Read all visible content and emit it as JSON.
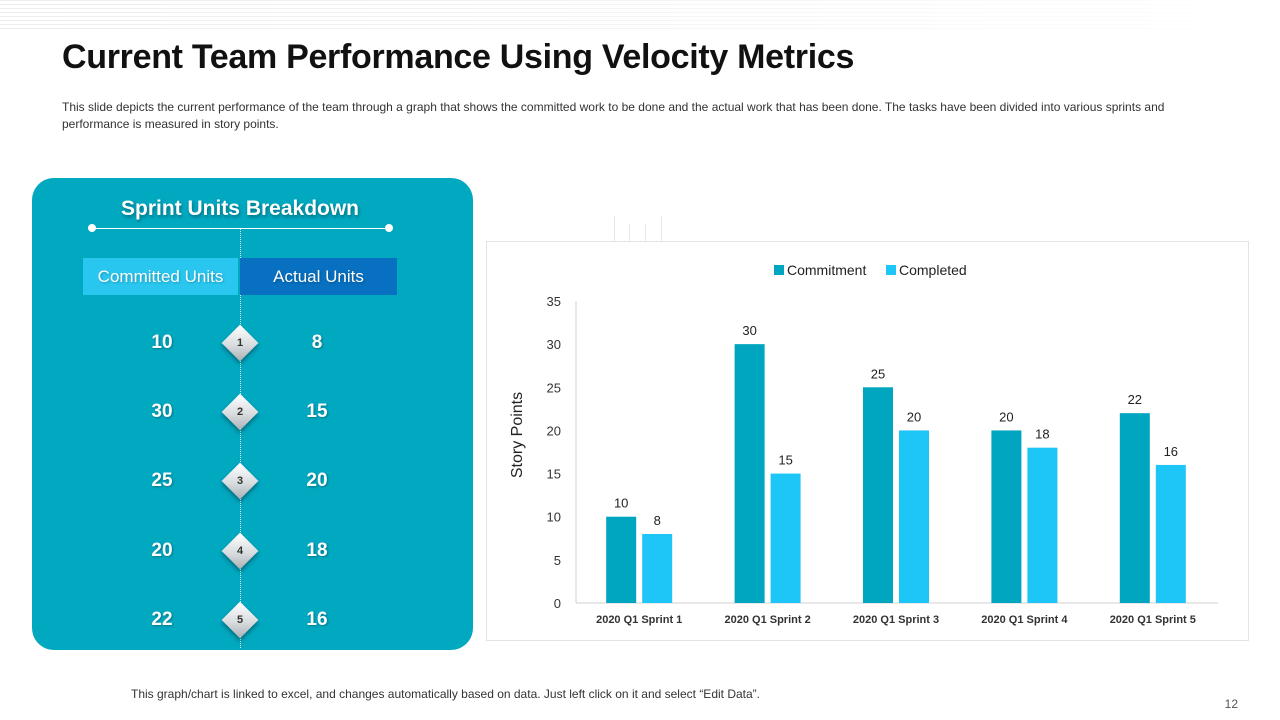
{
  "slide": {
    "title": "Current Team Performance Using Velocity Metrics",
    "description": "This slide depicts the current performance of the team through a graph that shows the committed work to be done and the actual work that has been done. The tasks have been divided into various sprints and performance is measured in story points.",
    "footer_note": "This graph/chart is linked to excel, and changes automatically based on data. Just left click on it and select “Edit Data”.",
    "page_number": "12"
  },
  "breakdown": {
    "title": "Sprint Units Breakdown",
    "committed_header": "Committed Units",
    "actual_header": "Actual Units",
    "rows": [
      {
        "index": "1",
        "committed": "10",
        "actual": "8"
      },
      {
        "index": "2",
        "committed": "30",
        "actual": "15"
      },
      {
        "index": "3",
        "committed": "25",
        "actual": "20"
      },
      {
        "index": "4",
        "committed": "20",
        "actual": "18"
      },
      {
        "index": "5",
        "committed": "22",
        "actual": "16"
      }
    ]
  },
  "colors": {
    "panel": "#00a8c0",
    "commitment": "#00a5bf",
    "completed": "#1ec5f7",
    "committed_header": "#29c7f0",
    "actual_header": "#0770c0"
  },
  "chart_data": {
    "type": "bar",
    "title": "",
    "xlabel": "",
    "ylabel": "Story Points",
    "ylim": [
      0,
      35
    ],
    "yticks": [
      0,
      5,
      10,
      15,
      20,
      25,
      30,
      35
    ],
    "grid": false,
    "legend_position": "top-center",
    "categories": [
      "2020 Q1 Sprint 1",
      "2020 Q1 Sprint 2",
      "2020 Q1 Sprint 3",
      "2020 Q1 Sprint 4",
      "2020 Q1 Sprint 5"
    ],
    "series": [
      {
        "name": "Commitment",
        "values": [
          10,
          30,
          25,
          20,
          22
        ]
      },
      {
        "name": "Completed",
        "values": [
          8,
          15,
          20,
          18,
          16
        ]
      }
    ]
  }
}
